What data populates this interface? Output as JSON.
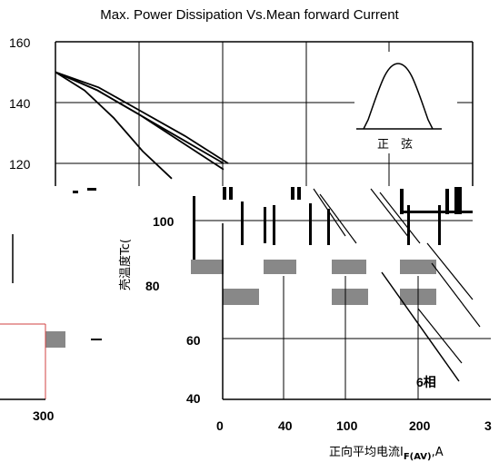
{
  "chart_data": [
    {
      "type": "line",
      "title": "Max. Power Dissipation Vs.Mean forward Current",
      "xlabel": "",
      "ylabel": "",
      "ylim": [
        110,
        160
      ],
      "y_ticks": [
        "160",
        "140",
        "120"
      ],
      "grid": true,
      "inset_label": "正　弦",
      "series": [
        {
          "values": [
            150,
            144,
            135,
            124,
            115
          ]
        },
        {
          "values": [
            150,
            144,
            136,
            127,
            118
          ]
        },
        {
          "values": [
            150,
            144,
            136,
            128,
            120
          ]
        },
        {
          "values": [
            150,
            145,
            137,
            129,
            120
          ]
        }
      ]
    },
    {
      "type": "line",
      "title": "",
      "ylabel": "壳温度Tc(",
      "xlabel": "正向平均电流I",
      "xlabel_sub": "F(AV)",
      "xlabel_suffix": ",A",
      "x_ticks": [
        "0",
        "40",
        "100",
        "200",
        "3"
      ],
      "y_ticks": [
        "100",
        "80",
        "60",
        "40"
      ],
      "extra_ticks": [
        "300"
      ],
      "series_label": "6相"
    }
  ]
}
